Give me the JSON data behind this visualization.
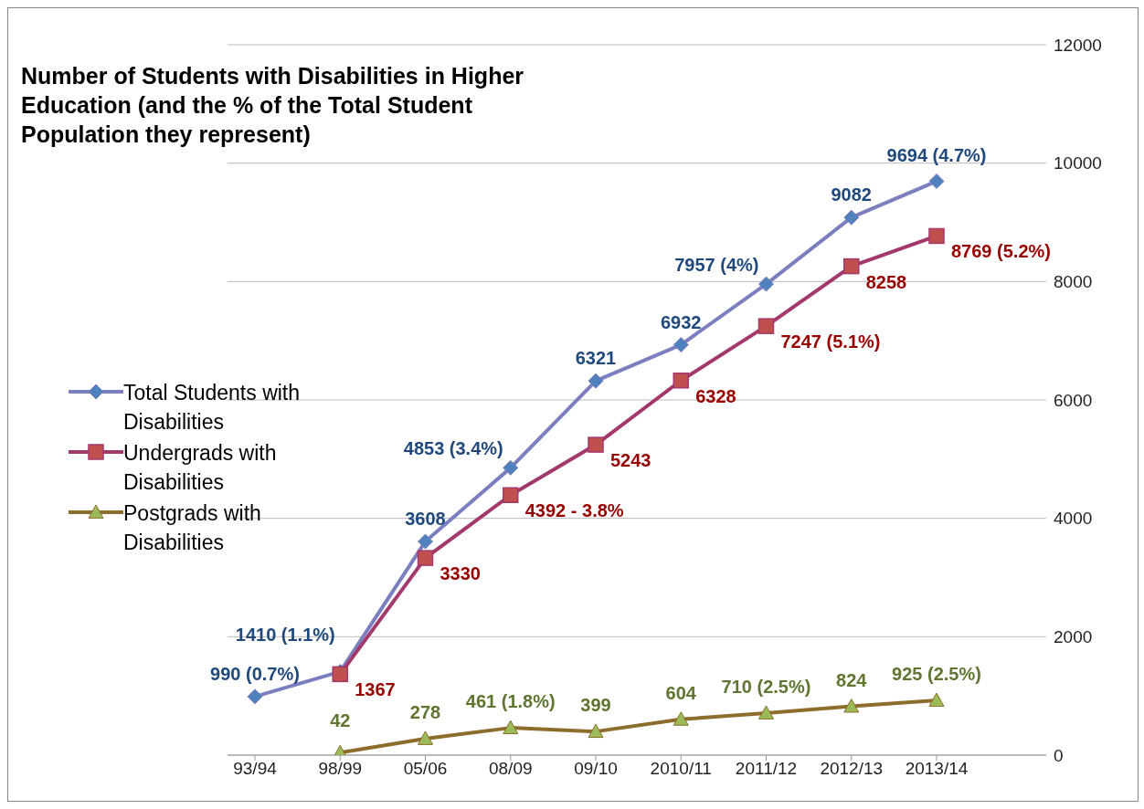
{
  "chart_data": {
    "type": "line",
    "title": "Number of Students with Disabilities in Higher Education (and the % of the Total Student Population they represent)",
    "categories": [
      "93/94",
      "98/99",
      "05/06",
      "08/09",
      "09/10",
      "2010/11",
      "2011/12",
      "2012/13",
      "2013/14"
    ],
    "series": [
      {
        "name": "Total Students with Disabilities",
        "color": "#7b7fc0",
        "marker": "diamond",
        "values": [
          990,
          1410,
          3608,
          4853,
          6321,
          6932,
          7957,
          9082,
          9694
        ],
        "value_labels": [
          "990 (0.7%)",
          "1410 (1.1%)",
          "3608",
          "4853 (3.4%)",
          "6321",
          "6932",
          "7957 (4%)",
          "9082",
          "9694 (4.7%)"
        ]
      },
      {
        "name": "Undergrads with Disabilities",
        "color": "#a3386c",
        "marker": "square",
        "values": [
          null,
          1367,
          3330,
          4392,
          5243,
          6328,
          7247,
          8258,
          8769
        ],
        "value_labels": [
          null,
          "1367",
          "3330",
          "4392 - 3.8%",
          "5243",
          "6328",
          "7247 (5.1%)",
          "8258",
          "8769 (5.2%)"
        ]
      },
      {
        "name": "Postgrads with Disabilities",
        "color": "#8c6d2c",
        "marker": "triangle",
        "values": [
          null,
          42,
          278,
          461,
          399,
          604,
          710,
          824,
          925
        ],
        "value_labels": [
          null,
          "42",
          "278",
          "461 (1.8%)",
          "399",
          "604",
          "710 (2.5%)",
          "824",
          "925 (2.5%)"
        ]
      }
    ],
    "ylim": [
      0,
      12000
    ],
    "yticks": [
      0,
      2000,
      4000,
      6000,
      8000,
      10000,
      12000
    ],
    "grid": "y",
    "legend": "left"
  }
}
